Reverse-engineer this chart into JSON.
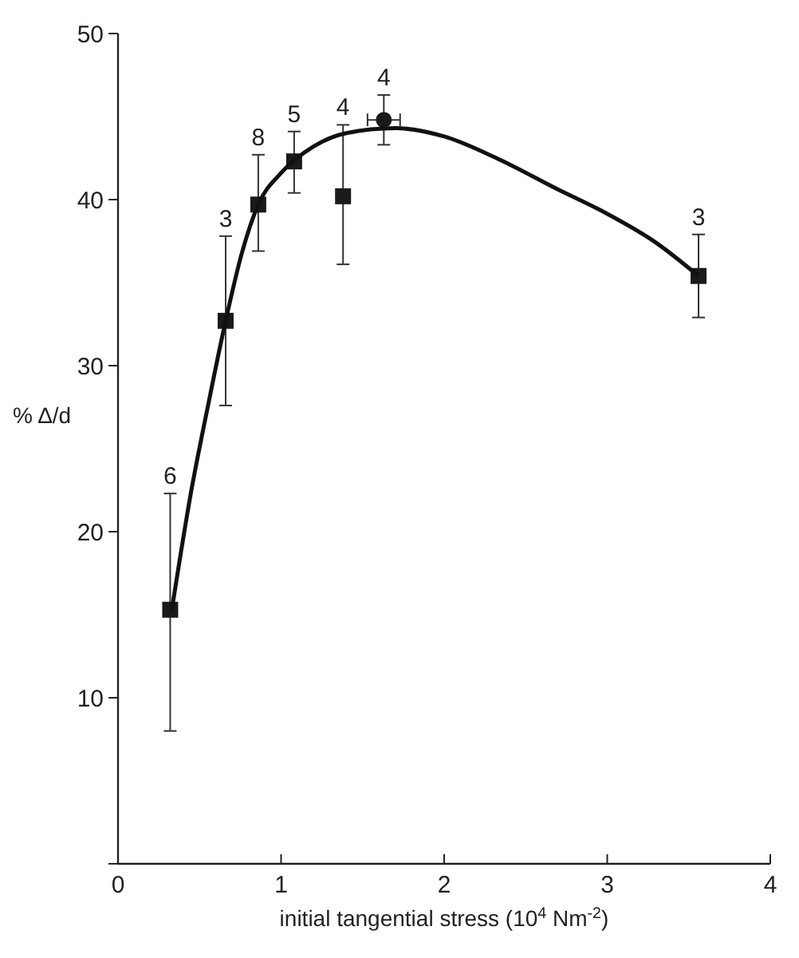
{
  "chart_data": {
    "type": "scatter",
    "xlabel": "initial tangential stress (10$^{4}$ Nm$^{-2}$)",
    "ylabel": "% Δ/d",
    "xlim": [
      0,
      4
    ],
    "xticks": [
      0,
      1,
      2,
      3,
      4
    ],
    "ylim": [
      0,
      50
    ],
    "yticks": [
      {
        "value": 0,
        "label": null
      },
      10,
      20,
      30,
      40,
      50
    ],
    "grid": false,
    "series": [
      {
        "marker": "square",
        "color": "#1a1a1a",
        "x": [
          0.32,
          0.66,
          0.86,
          1.08,
          1.38,
          3.56
        ],
        "values": [
          15.3,
          32.7,
          39.7,
          42.3,
          40.2,
          35.4
        ],
        "errors": [
          [
            8.0,
            22.3
          ],
          [
            27.6,
            37.8
          ],
          [
            36.9,
            42.7
          ],
          [
            40.4,
            44.1
          ],
          [
            36.1,
            44.5
          ],
          [
            32.9,
            37.9
          ]
        ]
      },
      {
        "marker": "circle",
        "color": "#1a1a1a",
        "x": [
          1.63
        ],
        "values": [
          44.8
        ],
        "errors": [
          [
            43.3,
            46.3
          ]
        ],
        "xerrors": [
          0.1
        ]
      },
      {
        "type": "line",
        "marker": "none",
        "color": "#111111",
        "x": [
          0.33,
          0.45,
          0.55,
          0.66,
          0.76,
          0.86,
          1.0,
          1.2,
          1.4,
          1.7,
          2.0,
          2.32,
          2.7,
          2.97,
          3.3,
          3.56
        ],
        "values": [
          15.3,
          22.5,
          27.5,
          32.7,
          36.8,
          39.7,
          41.6,
          43.2,
          44.0,
          44.3,
          43.8,
          42.5,
          40.6,
          39.3,
          37.4,
          35.4
        ]
      }
    ],
    "annotations": [
      {
        "text": "6",
        "x": 0.32,
        "y": 22.3
      },
      {
        "text": "3",
        "x": 0.66,
        "y": 37.8
      },
      {
        "text": "8",
        "x": 0.86,
        "y": 42.7
      },
      {
        "text": "5",
        "x": 1.08,
        "y": 44.1
      },
      {
        "text": "4",
        "x": 1.38,
        "y": 44.5
      },
      {
        "text": "4",
        "x": 1.63,
        "y": 46.3
      },
      {
        "text": "3",
        "x": 3.56,
        "y": 37.9
      }
    ]
  }
}
